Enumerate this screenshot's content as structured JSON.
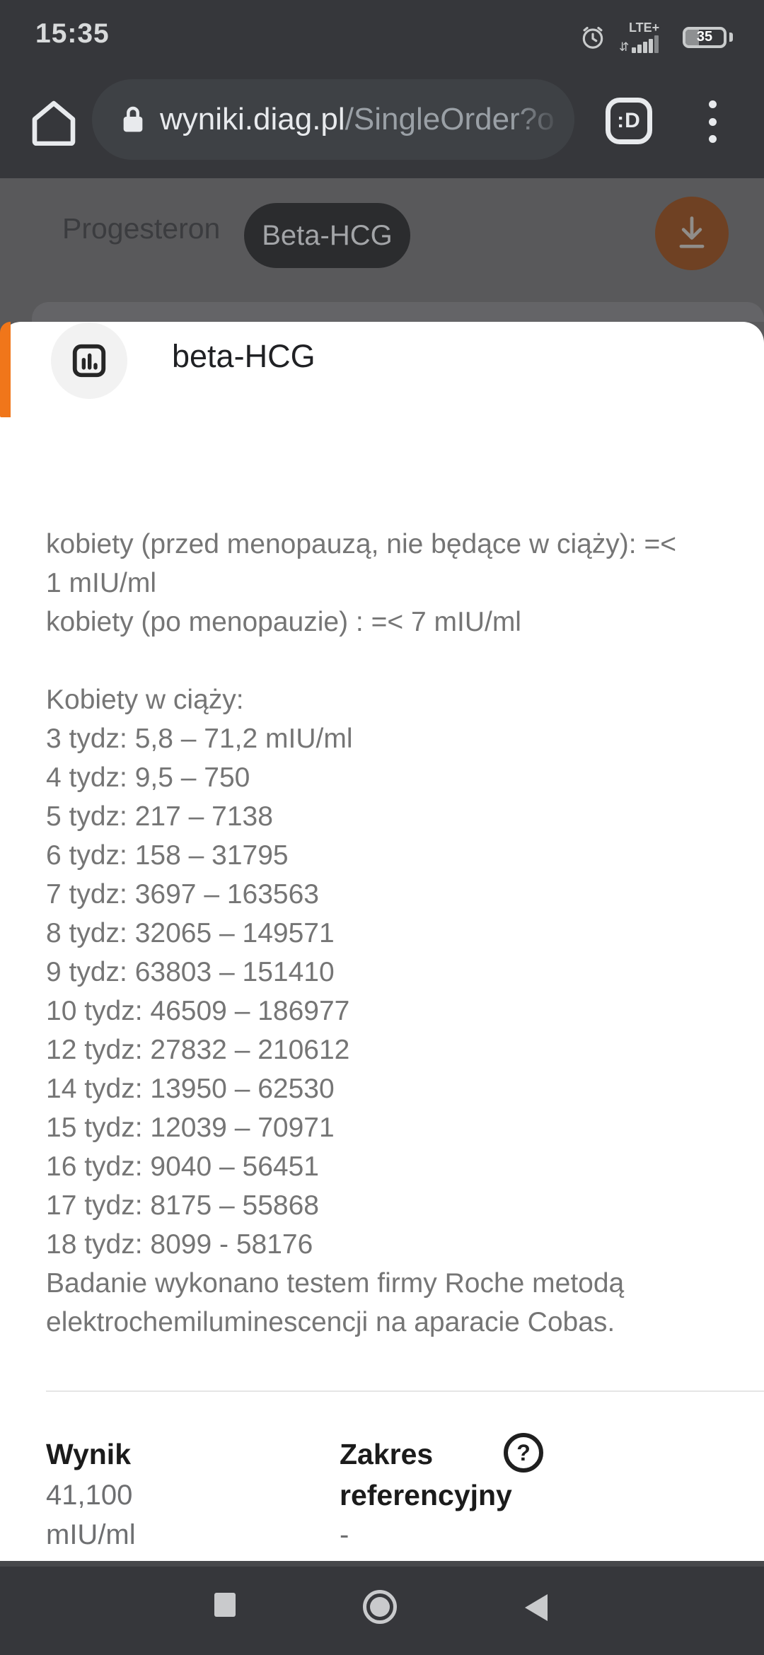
{
  "status_bar": {
    "time": "15:35",
    "network_label": "LTE+",
    "battery_percent": "35"
  },
  "browser": {
    "url_domain": "wyniki.diag.pl",
    "url_path": "/SingleOrder?o",
    "tab_badge": ":D"
  },
  "header": {
    "tabs": [
      {
        "label": "Progesteron",
        "active": false
      },
      {
        "label": "Beta-HCG",
        "active": true
      }
    ]
  },
  "sheet": {
    "title": "beta-HCG",
    "reference_lines": [
      "kobiety (przed menopauzą, nie będące w ciąży): =<",
      "1 mIU/ml",
      "kobiety (po menopauzie) : =< 7 mIU/ml",
      "",
      "Kobiety w ciąży:",
      "3 tydz: 5,8 – 71,2 mIU/ml",
      "4 tydz: 9,5 – 750",
      "5 tydz: 217 – 7138",
      "6 tydz: 158 – 31795",
      "7 tydz: 3697 – 163563",
      "8 tydz: 32065 – 149571",
      "9 tydz: 63803 – 151410",
      "10 tydz: 46509 – 186977",
      "12 tydz: 27832 – 210612",
      "14 tydz: 13950 – 62530",
      "15 tydz: 12039 – 70971",
      "16 tydz: 9040 – 56451",
      "17 tydz: 8175 – 55868",
      "18 tydz: 8099 - 58176",
      "Badanie wykonano testem firmy Roche metodą",
      "elektrochemiluminescencji na aparacie Cobas."
    ],
    "result": {
      "label": "Wynik",
      "value": "41,100",
      "unit": "mIU/ml",
      "range_label_line1": "Zakres",
      "range_label_line2": "referencyjny",
      "range_value": "-"
    }
  },
  "icons": {
    "help_glyph": "?"
  },
  "colors": {
    "accent_orange": "#F0761A",
    "chrome_dark": "#36373B",
    "scrim_gray": "#59595B",
    "active_tab_pill": "#2B2C2E",
    "fab_dimmed_orange": "#6F4123",
    "body_text_gray": "#757575",
    "result_text_dark": "#1B1B1B"
  }
}
